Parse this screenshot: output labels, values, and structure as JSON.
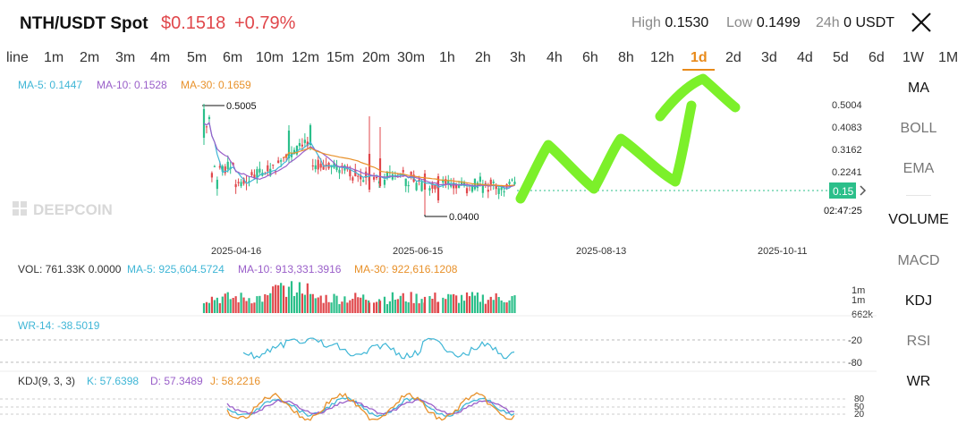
{
  "header": {
    "pair": "NTH/USDT Spot",
    "price": "$0.1518",
    "change": "+0.79%",
    "high_label": "High",
    "high_value": "0.1530",
    "low_label": "Low",
    "low_value": "0.1499",
    "vol_label": "24h",
    "vol_value": "0 USDT"
  },
  "timeframes": [
    "line",
    "1m",
    "2m",
    "3m",
    "4m",
    "5m",
    "6m",
    "10m",
    "12m",
    "15m",
    "20m",
    "30m",
    "1h",
    "2h",
    "3h",
    "4h",
    "6h",
    "8h",
    "12h",
    "1d",
    "2d",
    "3d",
    "4d",
    "5d",
    "6d",
    "1W",
    "1M"
  ],
  "active_timeframe": "1d",
  "ma_legend": {
    "ma5": "MA-5: 0.1447",
    "ma10": "MA-10: 0.1528",
    "ma30": "MA-30: 0.1659"
  },
  "price_axis": [
    "0.5004",
    "0.4083",
    "0.3162",
    "0.2241"
  ],
  "current_price_tag": "0.15",
  "countdown": "02:47:25",
  "high_marker": "0.5005",
  "low_marker": "0.0400",
  "watermark": "DEEPCOIN",
  "date_axis": [
    "2025-04-16",
    "2025-06-15",
    "2025-08-13",
    "2025-10-11"
  ],
  "volume_legend": {
    "vol": "VOL: 761.33K 0.0000",
    "ma5": "MA-5: 925,604.5724",
    "ma10": "MA-10: 913,331.3916",
    "ma30": "MA-30: 922,616.1208"
  },
  "volume_axis": [
    "1m",
    "1m",
    "662k"
  ],
  "wr_legend": "WR-14: -38.5019",
  "wr_axis": [
    "-20",
    "-80"
  ],
  "kdj_legend": {
    "name": "KDJ(9, 3, 3)",
    "k": "K: 57.6398",
    "d": "D: 57.3489",
    "j": "J: 58.2216"
  },
  "kdj_axis": [
    "80",
    "50",
    "20"
  ],
  "colors": {
    "up": "#2bbf8a",
    "down": "#e0474b",
    "ma5": "#3fb6d6",
    "ma10": "#9a5fc9",
    "ma30": "#e8912a",
    "annotation": "#7cf02a"
  },
  "side_menu": {
    "main": [
      "MA",
      "BOLL",
      "EMA"
    ],
    "sub": [
      "VOLUME",
      "MACD",
      "KDJ",
      "RSI",
      "WR"
    ],
    "active": [
      "MA",
      "VOLUME",
      "KDJ",
      "WR"
    ]
  }
}
